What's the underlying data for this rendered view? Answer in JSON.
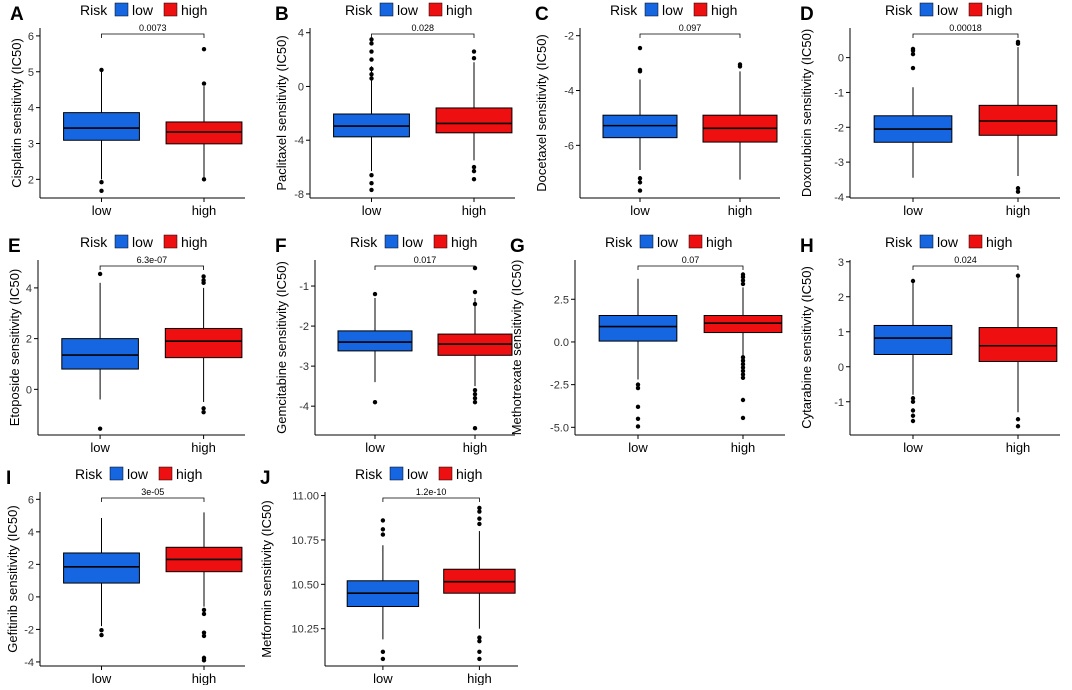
{
  "legend": {
    "title": "Risk",
    "low_label": "low",
    "high_label": "high"
  },
  "colors": {
    "low": "#1566E0",
    "high": "#EE1010",
    "axis": "#000000"
  },
  "chart_data": [
    {
      "panel": "A",
      "type": "box",
      "ylabel": "Cisplatin sensitivity (IC50)",
      "categories": [
        "low",
        "high"
      ],
      "ylim": [
        1.48,
        6.22
      ],
      "yticks": [
        2,
        3,
        4,
        5,
        6
      ],
      "pvalue": "0.0073",
      "boxes": [
        {
          "q1": 3.09,
          "median": 3.43,
          "q3": 3.86,
          "whisker_low": 2.0,
          "whisker_high": 5.0,
          "outliers": [
            1.92,
            1.68,
            5.05
          ]
        },
        {
          "q1": 2.99,
          "median": 3.32,
          "q3": 3.6,
          "whisker_low": 2.05,
          "whisker_high": 4.6,
          "outliers": [
            2.0,
            4.67,
            5.63
          ]
        }
      ]
    },
    {
      "panel": "B",
      "type": "box",
      "ylabel": "Paclitaxel sensitivity (IC50)",
      "categories": [
        "low",
        "high"
      ],
      "ylim": [
        -8.3,
        4.35
      ],
      "yticks": [
        -8,
        -4,
        0,
        4
      ],
      "pvalue": "0.028",
      "boxes": [
        {
          "q1": -3.75,
          "median": -2.95,
          "q3": -2.05,
          "whisker_low": -6.3,
          "whisker_high": 1.5,
          "outliers": [
            -6.6,
            -7.2,
            -7.7,
            0.6,
            0.9,
            1.3,
            2.0,
            2.6,
            3.2,
            3.5
          ]
        },
        {
          "q1": -3.45,
          "median": -2.75,
          "q3": -1.6,
          "whisker_low": -5.5,
          "whisker_high": 1.8,
          "outliers": [
            -6.0,
            -6.3,
            -6.9,
            2.1,
            2.6
          ]
        }
      ]
    },
    {
      "panel": "C",
      "type": "box",
      "ylabel": "Docetaxel sensitivity (IC50)",
      "categories": [
        "low",
        "high"
      ],
      "ylim": [
        -7.92,
        -1.72
      ],
      "yticks": [
        -6,
        -4,
        -2
      ],
      "pvalue": "0.097",
      "boxes": [
        {
          "q1": -5.72,
          "median": -5.28,
          "q3": -4.9,
          "whisker_low": -6.9,
          "whisker_high": -3.6,
          "outliers": [
            -7.2,
            -7.35,
            -7.65,
            -3.25,
            -3.3,
            -2.45
          ]
        },
        {
          "q1": -5.88,
          "median": -5.38,
          "q3": -4.9,
          "whisker_low": -7.25,
          "whisker_high": -3.3,
          "outliers": [
            -3.05,
            -3.12
          ]
        }
      ]
    },
    {
      "panel": "D",
      "type": "box",
      "ylabel": "Doxorubicin sensitivity (IC50)",
      "categories": [
        "low",
        "high"
      ],
      "ylim": [
        -4.03,
        0.85
      ],
      "yticks": [
        -4,
        -3,
        -2,
        -1,
        0
      ],
      "pvalue": "0.00018",
      "boxes": [
        {
          "q1": -2.43,
          "median": -2.05,
          "q3": -1.67,
          "whisker_low": -3.45,
          "whisker_high": -0.85,
          "outliers": [
            -0.3,
            0.1,
            0.2,
            0.25
          ]
        },
        {
          "q1": -2.23,
          "median": -1.82,
          "q3": -1.37,
          "whisker_low": -3.4,
          "whisker_high": 0.3,
          "outliers": [
            -3.75,
            -3.85,
            0.4,
            0.45
          ]
        }
      ]
    },
    {
      "panel": "E",
      "type": "box",
      "ylabel": "Etoposide sensitivity (IC50)",
      "categories": [
        "low",
        "high"
      ],
      "ylim": [
        -1.8,
        5.1
      ],
      "yticks": [
        0,
        2,
        4
      ],
      "pvalue": "6.3e-07",
      "boxes": [
        {
          "q1": 0.8,
          "median": 1.35,
          "q3": 2.0,
          "whisker_low": -0.4,
          "whisker_high": 4.2,
          "outliers": [
            -1.55,
            4.55
          ]
        },
        {
          "q1": 1.25,
          "median": 1.9,
          "q3": 2.4,
          "whisker_low": -0.5,
          "whisker_high": 4.0,
          "outliers": [
            -0.75,
            -0.9,
            4.2,
            4.3,
            4.45
          ]
        }
      ]
    },
    {
      "panel": "F",
      "type": "box",
      "ylabel": "Gemcitabine sensitivity (IC50)",
      "categories": [
        "low",
        "high"
      ],
      "ylim": [
        -4.72,
        -0.35
      ],
      "yticks": [
        -4,
        -3,
        -2,
        -1
      ],
      "pvalue": "0.017",
      "boxes": [
        {
          "q1": -2.62,
          "median": -2.4,
          "q3": -2.12,
          "whisker_low": -3.4,
          "whisker_high": -1.3,
          "outliers": [
            -3.9,
            -1.2
          ]
        },
        {
          "q1": -2.73,
          "median": -2.45,
          "q3": -2.2,
          "whisker_low": -3.5,
          "whisker_high": -1.3,
          "outliers": [
            -3.6,
            -3.7,
            -3.8,
            -3.9,
            -4.55,
            -1.15,
            -1.45,
            -0.55
          ]
        }
      ]
    },
    {
      "panel": "G",
      "type": "box",
      "ylabel": "Methotrexate sensitivity (IC50)",
      "categories": [
        "low",
        "high"
      ],
      "ylim": [
        -5.45,
        4.8
      ],
      "yticks": [
        -5.0,
        -2.5,
        0.0,
        2.5
      ],
      "pvalue": "0.07",
      "boxes": [
        {
          "q1": 0.05,
          "median": 0.9,
          "q3": 1.55,
          "whisker_low": -2.2,
          "whisker_high": 3.7,
          "outliers": [
            -2.5,
            -2.7,
            -3.8,
            -4.5,
            -4.95
          ]
        },
        {
          "q1": 0.55,
          "median": 1.1,
          "q3": 1.55,
          "whisker_low": -0.8,
          "whisker_high": 3.2,
          "outliers": [
            -0.9,
            -1.1,
            -1.3,
            -1.5,
            -1.7,
            -1.9,
            -2.1,
            -3.4,
            -4.45,
            3.4,
            3.6,
            3.8,
            3.95
          ]
        }
      ]
    },
    {
      "panel": "H",
      "type": "box",
      "ylabel": "Cytarabine sensitivity (IC50)",
      "categories": [
        "low",
        "high"
      ],
      "ylim": [
        -1.95,
        3.05
      ],
      "yticks": [
        -1,
        0,
        1,
        2,
        3
      ],
      "pvalue": "0.024",
      "boxes": [
        {
          "q1": 0.35,
          "median": 0.82,
          "q3": 1.18,
          "whisker_low": -0.8,
          "whisker_high": 2.4,
          "outliers": [
            -0.9,
            -1.0,
            -1.25,
            -1.4,
            -1.55,
            2.45
          ]
        },
        {
          "q1": 0.15,
          "median": 0.6,
          "q3": 1.12,
          "whisker_low": -1.3,
          "whisker_high": 2.55,
          "outliers": [
            -1.5,
            -1.7,
            2.6
          ]
        }
      ]
    },
    {
      "panel": "I",
      "type": "box",
      "ylabel": "Gefitinib sensitivity (IC50)",
      "categories": [
        "low",
        "high"
      ],
      "ylim": [
        -4.25,
        6.45
      ],
      "yticks": [
        -4,
        -2,
        0,
        2,
        4,
        6
      ],
      "pvalue": "3e-05",
      "boxes": [
        {
          "q1": 0.85,
          "median": 1.85,
          "q3": 2.7,
          "whisker_low": -1.8,
          "whisker_high": 4.85,
          "outliers": [
            -2.05,
            -2.35
          ]
        },
        {
          "q1": 1.55,
          "median": 2.3,
          "q3": 3.05,
          "whisker_low": -0.6,
          "whisker_high": 5.2,
          "outliers": [
            -0.8,
            -1.05,
            -2.2,
            -2.4,
            -3.75,
            -3.9
          ]
        }
      ]
    },
    {
      "panel": "J",
      "type": "box",
      "ylabel": "Metformin sensitivity (IC50)",
      "categories": [
        "low",
        "high"
      ],
      "ylim": [
        10.04,
        11.02
      ],
      "yticks": [
        10.25,
        10.5,
        10.75,
        11.0
      ],
      "pvalue": "1.2e-10",
      "boxes": [
        {
          "q1": 10.375,
          "median": 10.45,
          "q3": 10.52,
          "whisker_low": 10.19,
          "whisker_high": 10.72,
          "outliers": [
            10.08,
            10.12,
            10.78,
            10.81,
            10.86
          ]
        },
        {
          "q1": 10.45,
          "median": 10.515,
          "q3": 10.585,
          "whisker_low": 10.25,
          "whisker_high": 10.8,
          "outliers": [
            10.08,
            10.12,
            10.18,
            10.2,
            10.84,
            10.87,
            10.91,
            10.93
          ]
        }
      ]
    }
  ]
}
